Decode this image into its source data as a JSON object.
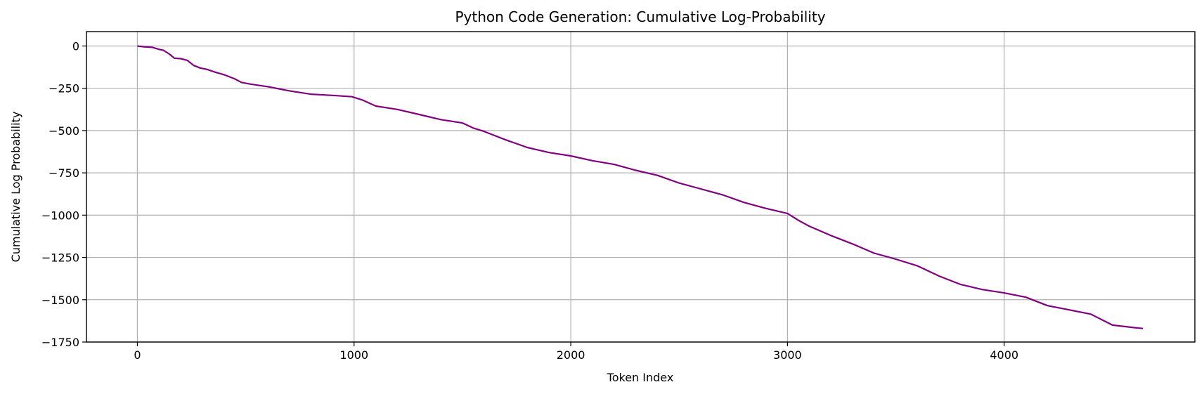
{
  "chart_data": {
    "type": "line",
    "title": "Python Code Generation: Cumulative Log-Probability",
    "xlabel": "Token Index",
    "ylabel": "Cumulative Log Probability",
    "xlim": [
      -235,
      4880
    ],
    "ylim": [
      -1750,
      85
    ],
    "xticks": [
      0,
      1000,
      2000,
      3000,
      4000
    ],
    "yticks": [
      0,
      -250,
      -500,
      -750,
      -1000,
      -1250,
      -1500,
      -1750
    ],
    "xtick_labels": [
      "0",
      "1000",
      "2000",
      "3000",
      "4000"
    ],
    "ytick_labels": [
      "0",
      "−250",
      "−500",
      "−750",
      "−1000",
      "−1250",
      "−1500",
      "−1750"
    ],
    "grid": true,
    "line_color": "#800080",
    "series": [
      {
        "name": "cumulative log-probability",
        "x": [
          0,
          30,
          70,
          100,
          120,
          150,
          170,
          200,
          230,
          260,
          290,
          320,
          360,
          400,
          450,
          480,
          520,
          600,
          700,
          800,
          900,
          990,
          1040,
          1100,
          1200,
          1300,
          1400,
          1500,
          1550,
          1600,
          1700,
          1800,
          1900,
          2000,
          2100,
          2200,
          2300,
          2400,
          2500,
          2600,
          2700,
          2800,
          2900,
          3000,
          3050,
          3100,
          3200,
          3300,
          3400,
          3500,
          3600,
          3700,
          3800,
          3900,
          4000,
          4100,
          4150,
          4200,
          4300,
          4400,
          4500,
          4600,
          4640
        ],
        "y": [
          0,
          -5,
          -8,
          -20,
          -25,
          -50,
          -72,
          -75,
          -85,
          -115,
          -130,
          -138,
          -155,
          -170,
          -195,
          -215,
          -225,
          -240,
          -265,
          -285,
          -292,
          -300,
          -320,
          -355,
          -375,
          -405,
          -435,
          -455,
          -485,
          -505,
          -555,
          -600,
          -630,
          -650,
          -678,
          -700,
          -735,
          -765,
          -810,
          -845,
          -880,
          -925,
          -960,
          -990,
          -1030,
          -1065,
          -1120,
          -1170,
          -1225,
          -1260,
          -1300,
          -1360,
          -1410,
          -1440,
          -1460,
          -1485,
          -1510,
          -1535,
          -1560,
          -1585,
          -1650,
          -1665,
          -1670
        ]
      }
    ]
  }
}
